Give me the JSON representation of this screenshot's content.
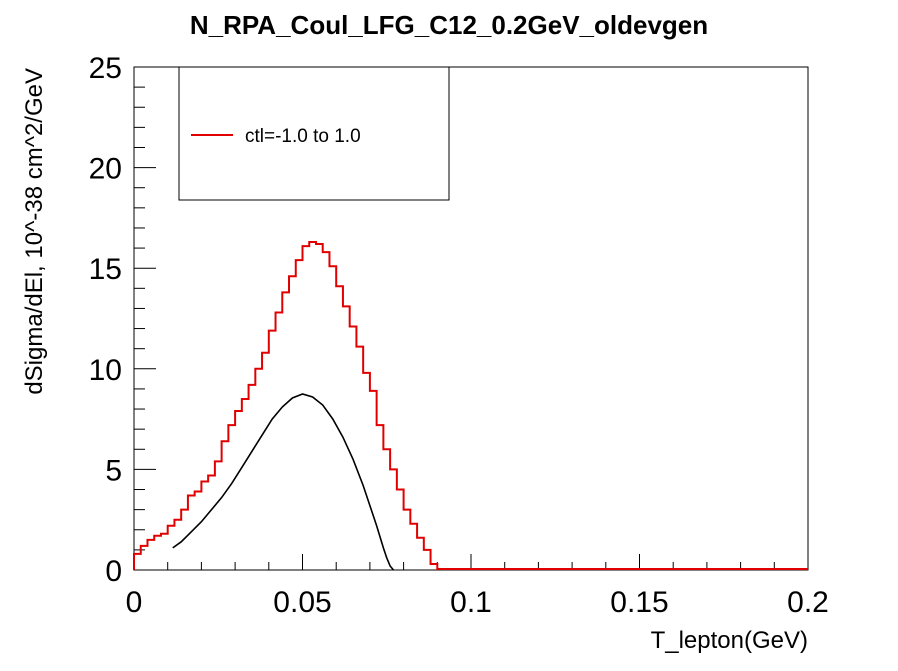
{
  "chart_data": {
    "type": "line",
    "title": "N_RPA_Coul_LFG_C12_0.2GeV_oldevgen",
    "xlabel": "T_lepton(GeV)",
    "ylabel": "dSigma/dEl, 10^-38 cm^2/GeV",
    "xlim": [
      0,
      0.2
    ],
    "ylim": [
      0,
      25
    ],
    "xticks": [
      0,
      0.05,
      0.1,
      0.15,
      0.2
    ],
    "xtick_labels": [
      "0",
      "0.05",
      "0.1",
      "0.15",
      "0.2"
    ],
    "yticks": [
      0,
      5,
      10,
      15,
      20,
      25
    ],
    "ytick_labels": [
      "0",
      "5",
      "10",
      "15",
      "20",
      "25"
    ],
    "grid": false,
    "legend_position": "top-left",
    "series": [
      {
        "name": "ctl=-1.0 to 1.0",
        "style": "histogram",
        "color": "#e00000",
        "bin_width": 0.002,
        "x": [
          0.0,
          0.002,
          0.004,
          0.006,
          0.008,
          0.01,
          0.012,
          0.014,
          0.016,
          0.018,
          0.02,
          0.022,
          0.024,
          0.026,
          0.028,
          0.03,
          0.032,
          0.034,
          0.036,
          0.038,
          0.04,
          0.042,
          0.044,
          0.046,
          0.048,
          0.05,
          0.052,
          0.054,
          0.056,
          0.058,
          0.06,
          0.062,
          0.064,
          0.066,
          0.068,
          0.07,
          0.072,
          0.074,
          0.076,
          0.078,
          0.08,
          0.082,
          0.084,
          0.086,
          0.088,
          0.09,
          0.092,
          0.094,
          0.096,
          0.098,
          0.1,
          0.102,
          0.104,
          0.106,
          0.108,
          0.11,
          0.112,
          0.114,
          0.116,
          0.118,
          0.12,
          0.122,
          0.124,
          0.126,
          0.128,
          0.13,
          0.132,
          0.134,
          0.136,
          0.138,
          0.14,
          0.142,
          0.144,
          0.146,
          0.148,
          0.15,
          0.152,
          0.154,
          0.156,
          0.158,
          0.16,
          0.162,
          0.164,
          0.166,
          0.168,
          0.17,
          0.172,
          0.174,
          0.176,
          0.178,
          0.18,
          0.182,
          0.184,
          0.186,
          0.188,
          0.19,
          0.192,
          0.194,
          0.196,
          0.198
        ],
        "values": [
          0.8,
          1.2,
          1.5,
          1.7,
          1.8,
          2.2,
          2.5,
          3.0,
          3.7,
          3.9,
          4.4,
          4.7,
          5.4,
          6.4,
          7.2,
          7.9,
          8.5,
          9.2,
          10.0,
          10.8,
          11.9,
          12.8,
          13.8,
          14.6,
          15.4,
          16.1,
          16.3,
          16.2,
          15.8,
          15.1,
          14.1,
          13.1,
          12.1,
          11.1,
          9.8,
          8.9,
          7.2,
          6.0,
          5.0,
          4.0,
          3.0,
          2.3,
          1.6,
          1.0,
          0.3,
          0.05,
          0.05,
          0.05,
          0.05,
          0.05,
          0.05,
          0.05,
          0.05,
          0.05,
          0.05,
          0.05,
          0.05,
          0.05,
          0.05,
          0.05,
          0.05,
          0.05,
          0.05,
          0.05,
          0.05,
          0.05,
          0.05,
          0.05,
          0.05,
          0.05,
          0.05,
          0.05,
          0.05,
          0.05,
          0.05,
          0.05,
          0.05,
          0.05,
          0.05,
          0.05,
          0.05,
          0.05,
          0.05,
          0.05,
          0.05,
          0.05,
          0.05,
          0.05,
          0.05,
          0.05,
          0.05,
          0.05,
          0.05,
          0.05,
          0.05,
          0.05,
          0.05,
          0.05,
          0.05,
          0.05
        ]
      },
      {
        "style": "line",
        "color": "#000000",
        "x": [
          0.0115,
          0.014,
          0.017,
          0.02,
          0.023,
          0.026,
          0.029,
          0.032,
          0.035,
          0.038,
          0.041,
          0.044,
          0.047,
          0.05,
          0.053,
          0.056,
          0.059,
          0.062,
          0.065,
          0.068,
          0.07,
          0.072,
          0.074,
          0.075,
          0.076,
          0.077
        ],
        "values": [
          1.1,
          1.4,
          1.9,
          2.4,
          3.0,
          3.6,
          4.3,
          5.1,
          5.9,
          6.7,
          7.5,
          8.1,
          8.55,
          8.75,
          8.6,
          8.2,
          7.5,
          6.6,
          5.5,
          4.2,
          3.2,
          2.2,
          1.1,
          0.6,
          0.2,
          0.0
        ]
      }
    ]
  }
}
